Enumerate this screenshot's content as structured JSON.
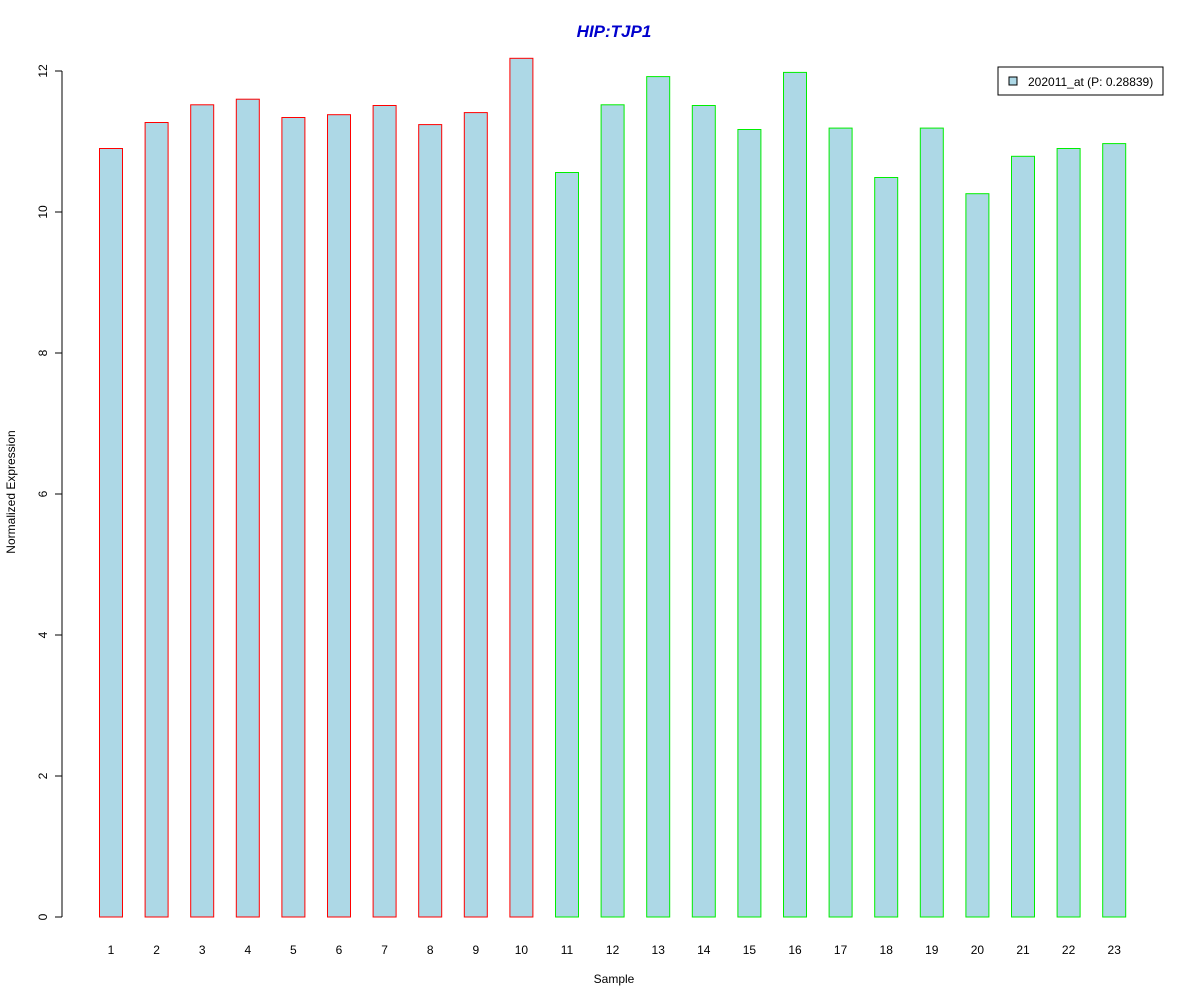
{
  "chart_data": {
    "type": "bar",
    "title": "HIP:TJP1",
    "xlabel": "Sample",
    "ylabel": "Normalized Expression",
    "ylim": [
      0,
      12
    ],
    "yticks": [
      0,
      2,
      4,
      6,
      8,
      10,
      12
    ],
    "categories": [
      "1",
      "2",
      "3",
      "4",
      "5",
      "6",
      "7",
      "8",
      "9",
      "10",
      "11",
      "12",
      "13",
      "14",
      "15",
      "16",
      "17",
      "18",
      "19",
      "20",
      "21",
      "22",
      "23"
    ],
    "values": [
      10.9,
      11.27,
      11.52,
      11.6,
      11.34,
      11.38,
      11.51,
      11.24,
      11.41,
      12.18,
      10.56,
      11.52,
      11.92,
      11.51,
      11.17,
      11.98,
      11.19,
      10.49,
      11.19,
      10.26,
      10.79,
      10.9,
      10.97
    ],
    "groups": [
      "red",
      "red",
      "red",
      "red",
      "red",
      "red",
      "red",
      "red",
      "red",
      "red",
      "green",
      "green",
      "green",
      "green",
      "green",
      "green",
      "green",
      "green",
      "green",
      "green",
      "green",
      "green",
      "green"
    ],
    "legend": {
      "label": "202011_at (P: 0.28839)",
      "position": "top-right"
    },
    "grid": false,
    "colors": {
      "bar_fill": "#add8e6",
      "group_border": {
        "red": "#ff0000",
        "green": "#00ee00"
      },
      "title": "#0000cd"
    }
  }
}
